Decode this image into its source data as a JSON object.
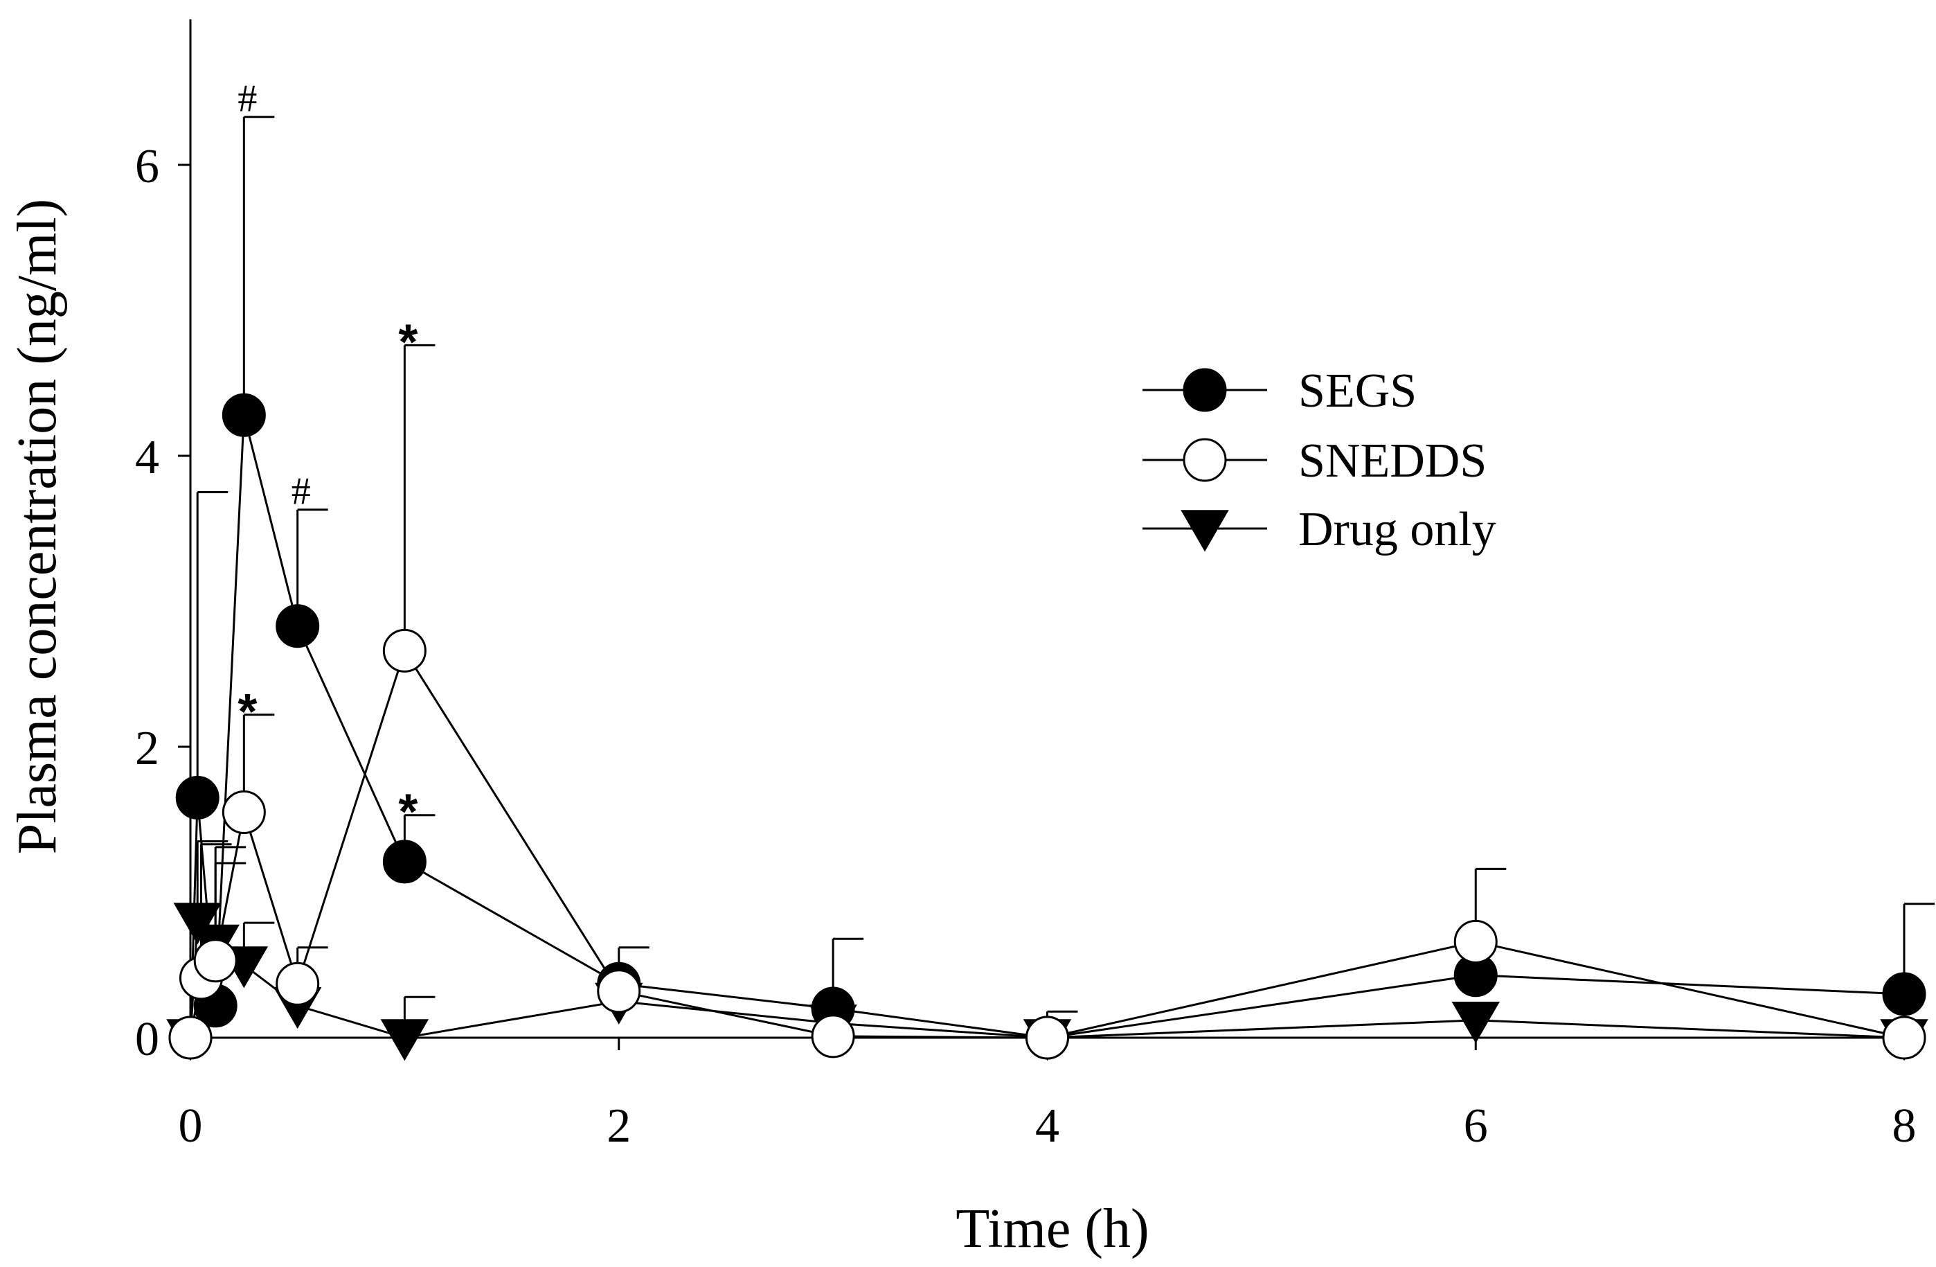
{
  "chart_data": {
    "type": "line",
    "title": "",
    "xlabel": "Time (h)",
    "ylabel": "Plasma concentration (ng/ml)",
    "xlim": [
      0,
      8
    ],
    "ylim": [
      0,
      7
    ],
    "xticks": [
      0,
      2,
      4,
      6,
      8
    ],
    "yticks": [
      0,
      2,
      4,
      6
    ],
    "xtick_labels": [
      "0",
      "2",
      "4",
      "6",
      "8"
    ],
    "ytick_labels": [
      "0",
      "2",
      "4",
      "6"
    ],
    "grid": false,
    "legend_position": "upper-right",
    "series": [
      {
        "name": "SEGS",
        "marker": "filled-circle",
        "x": [
          0,
          0.033,
          0.117,
          0.25,
          0.5,
          1,
          2,
          3,
          4,
          6,
          8
        ],
        "values": [
          0,
          1.65,
          0.22,
          4.28,
          2.83,
          1.21,
          0.37,
          0.2,
          0,
          0.43,
          0.3
        ],
        "error": [
          0,
          2.1,
          0,
          2.05,
          0.8,
          0.32,
          0,
          0.48,
          0,
          0,
          0.62
        ]
      },
      {
        "name": "SNEDDS",
        "marker": "open-circle",
        "x": [
          0,
          0.05,
          0.117,
          0.25,
          0.5,
          1,
          2,
          3,
          4,
          6,
          8
        ],
        "values": [
          0,
          0.41,
          0.53,
          1.55,
          0.37,
          2.66,
          0.32,
          0.01,
          0,
          0.66,
          0
        ],
        "error": [
          0,
          0.92,
          0.78,
          0.67,
          0.25,
          2.1,
          0.3,
          0,
          0.18,
          0.5,
          0
        ]
      },
      {
        "name": "Drug only",
        "marker": "filled-triangle-down",
        "x": [
          0,
          0.033,
          0.117,
          0.25,
          0.5,
          1,
          2,
          3,
          4,
          6,
          8
        ],
        "values": [
          0,
          0.8,
          0.65,
          0.5,
          0.22,
          0,
          0.25,
          0.1,
          0,
          0.12,
          0
        ],
        "error": [
          0,
          0.55,
          0.55,
          0.29,
          0,
          0.28,
          0,
          0,
          0,
          0,
          0
        ]
      }
    ],
    "annotations": [
      {
        "text": "#",
        "x": 0.25,
        "y": 6.33
      },
      {
        "text": "#",
        "x": 0.5,
        "y": 3.63
      },
      {
        "text": "*",
        "x": 0.25,
        "y": 2.22
      },
      {
        "text": "*",
        "x": 1,
        "y": 4.76
      },
      {
        "text": "*",
        "x": 1,
        "y": 1.53
      }
    ]
  },
  "colors": {
    "line": "#000000",
    "filled_marker": "#000000",
    "open_marker_fill": "#ffffff",
    "background": "#ffffff"
  }
}
